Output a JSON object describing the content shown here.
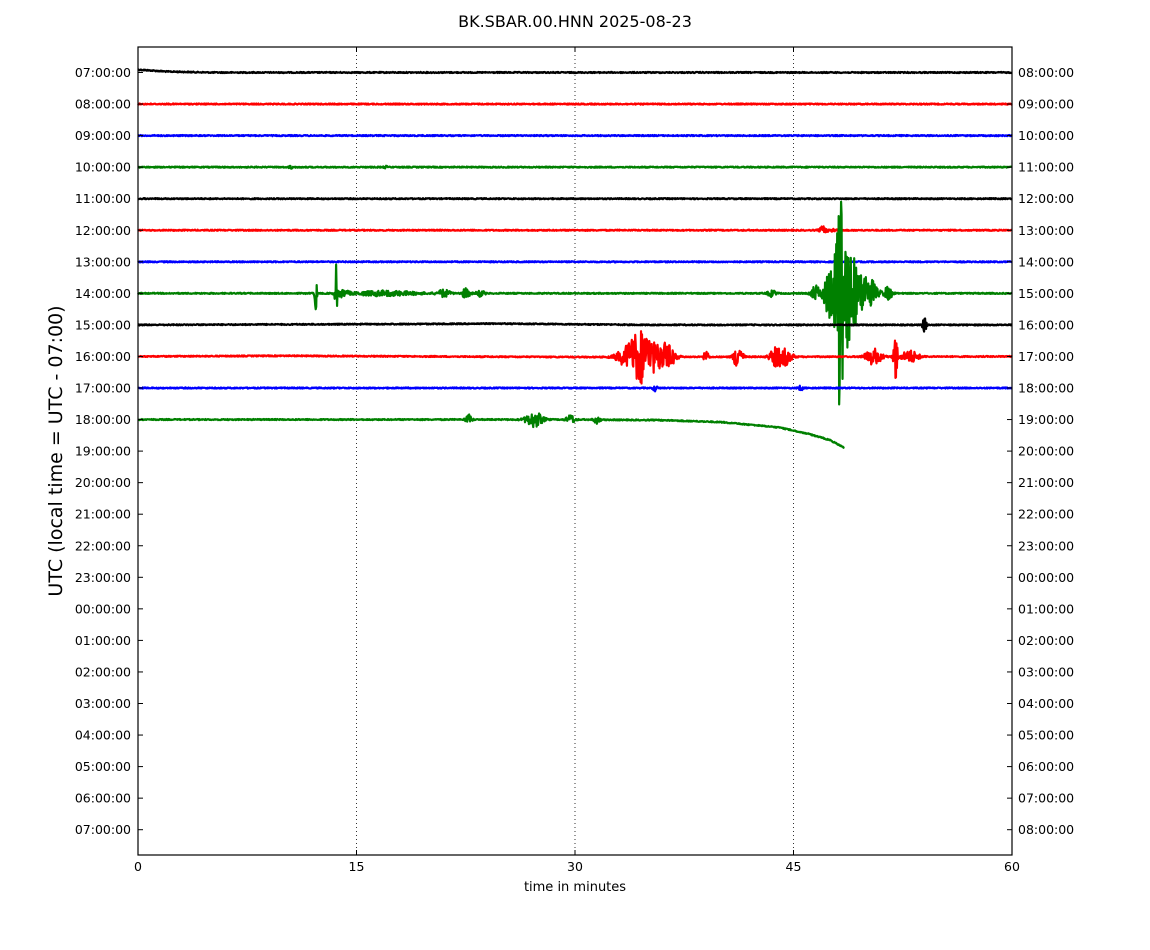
{
  "chart_data": {
    "type": "line",
    "title": "BK.SBAR.00.HNN 2025-08-23",
    "xlabel": "time in minutes",
    "ylabel": "UTC (local time = UTC - 07:00)",
    "xlim": [
      0,
      60
    ],
    "x_ticks": [
      0,
      15,
      30,
      45,
      60
    ],
    "x_grid": true,
    "left_tick_labels": [
      "07:00:00",
      "08:00:00",
      "09:00:00",
      "10:00:00",
      "11:00:00",
      "12:00:00",
      "13:00:00",
      "14:00:00",
      "15:00:00",
      "16:00:00",
      "17:00:00",
      "18:00:00",
      "19:00:00",
      "20:00:00",
      "21:00:00",
      "22:00:00",
      "23:00:00",
      "00:00:00",
      "01:00:00",
      "02:00:00",
      "03:00:00",
      "04:00:00",
      "05:00:00",
      "06:00:00",
      "07:00:00"
    ],
    "right_tick_labels": [
      "08:00:00",
      "09:00:00",
      "10:00:00",
      "11:00:00",
      "12:00:00",
      "13:00:00",
      "14:00:00",
      "15:00:00",
      "16:00:00",
      "17:00:00",
      "18:00:00",
      "19:00:00",
      "20:00:00",
      "21:00:00",
      "22:00:00",
      "23:00:00",
      "00:00:00",
      "01:00:00",
      "02:00:00",
      "03:00:00",
      "04:00:00",
      "05:00:00",
      "06:00:00",
      "07:00:00",
      "08:00:00"
    ],
    "traces": [
      {
        "hour": "07:00:00",
        "color": "#000000",
        "end_minute": 60,
        "drift": [
          [
            0,
            -0.09
          ],
          [
            2,
            -0.03
          ],
          [
            5,
            0
          ],
          [
            60,
            0
          ]
        ],
        "bursts": []
      },
      {
        "hour": "08:00:00",
        "color": "#ff0000",
        "end_minute": 60,
        "drift": [],
        "bursts": []
      },
      {
        "hour": "09:00:00",
        "color": "#0000ff",
        "end_minute": 60,
        "drift": [],
        "bursts": []
      },
      {
        "hour": "10:00:00",
        "color": "#008000",
        "end_minute": 60,
        "drift": [],
        "bursts": [
          [
            10.5,
            0.1,
            0.04
          ],
          [
            17,
            0.1,
            0.03
          ]
        ]
      },
      {
        "hour": "11:00:00",
        "color": "#000000",
        "end_minute": 60,
        "drift": [],
        "bursts": []
      },
      {
        "hour": "12:00:00",
        "color": "#ff0000",
        "end_minute": 60,
        "drift": [],
        "bursts": [
          [
            47,
            0.15,
            0.12
          ],
          [
            47.6,
            0.2,
            0.05
          ]
        ]
      },
      {
        "hour": "13:00:00",
        "color": "#0000ff",
        "end_minute": 60,
        "drift": [],
        "bursts": []
      },
      {
        "hour": "14:00:00",
        "color": "#008000",
        "end_minute": 60,
        "drift": [],
        "bursts": [
          [
            12.2,
            0.05,
            0.7
          ],
          [
            13.6,
            0.05,
            0.9
          ],
          [
            14,
            0.3,
            0.12
          ],
          [
            17,
            1.5,
            0.08
          ],
          [
            21,
            0.3,
            0.12
          ],
          [
            22.5,
            0.2,
            0.15
          ],
          [
            23.5,
            0.2,
            0.1
          ],
          [
            43.5,
            0.2,
            0.1
          ],
          [
            46.5,
            0.2,
            0.25
          ],
          [
            47.4,
            0.25,
            0.35
          ],
          [
            48.2,
            0.15,
            3.3
          ],
          [
            48.4,
            0.6,
            1.5
          ],
          [
            49.3,
            0.8,
            0.5
          ],
          [
            50.2,
            0.3,
            0.3
          ],
          [
            51.5,
            0.2,
            0.2
          ]
        ]
      },
      {
        "hour": "15:00:00",
        "color": "#000000",
        "end_minute": 60,
        "drift": [
          [
            0,
            0
          ],
          [
            20,
            -0.03
          ],
          [
            25,
            -0.04
          ],
          [
            35,
            0
          ],
          [
            60,
            0
          ]
        ],
        "bursts": [
          [
            54,
            0.1,
            0.25
          ]
        ]
      },
      {
        "hour": "16:00:00",
        "color": "#ff0000",
        "end_minute": 60,
        "drift": [
          [
            0,
            0
          ],
          [
            10,
            -0.02
          ],
          [
            30,
            0.02
          ],
          [
            60,
            0
          ]
        ],
        "bursts": [
          [
            33.5,
            0.5,
            0.25
          ],
          [
            34.2,
            0.4,
            0.5
          ],
          [
            34.8,
            0.4,
            0.55
          ],
          [
            35.5,
            0.5,
            0.3
          ],
          [
            36.3,
            0.4,
            0.35
          ],
          [
            39,
            0.1,
            0.3
          ],
          [
            41.2,
            0.2,
            0.45
          ],
          [
            43.8,
            0.3,
            0.3
          ],
          [
            44.5,
            0.3,
            0.25
          ],
          [
            50.5,
            0.4,
            0.25
          ],
          [
            52,
            0.1,
            0.8
          ],
          [
            53,
            0.4,
            0.2
          ]
        ]
      },
      {
        "hour": "17:00:00",
        "color": "#0000ff",
        "end_minute": 60,
        "drift": [],
        "bursts": [
          [
            35.5,
            0.1,
            0.1
          ],
          [
            45.5,
            0.1,
            0.08
          ]
        ]
      },
      {
        "hour": "18:00:00",
        "color": "#008000",
        "end_minute": 48.5,
        "drift": [
          [
            0,
            0
          ],
          [
            30,
            0
          ],
          [
            36,
            0.02
          ],
          [
            40,
            0.08
          ],
          [
            44,
            0.25
          ],
          [
            46,
            0.45
          ],
          [
            47.5,
            0.65
          ],
          [
            48.5,
            0.9
          ]
        ],
        "bursts": [
          [
            22.7,
            0.15,
            0.15
          ],
          [
            27.2,
            0.4,
            0.25
          ],
          [
            29.7,
            0.2,
            0.15
          ],
          [
            31.5,
            0.15,
            0.12
          ]
        ]
      }
    ]
  }
}
